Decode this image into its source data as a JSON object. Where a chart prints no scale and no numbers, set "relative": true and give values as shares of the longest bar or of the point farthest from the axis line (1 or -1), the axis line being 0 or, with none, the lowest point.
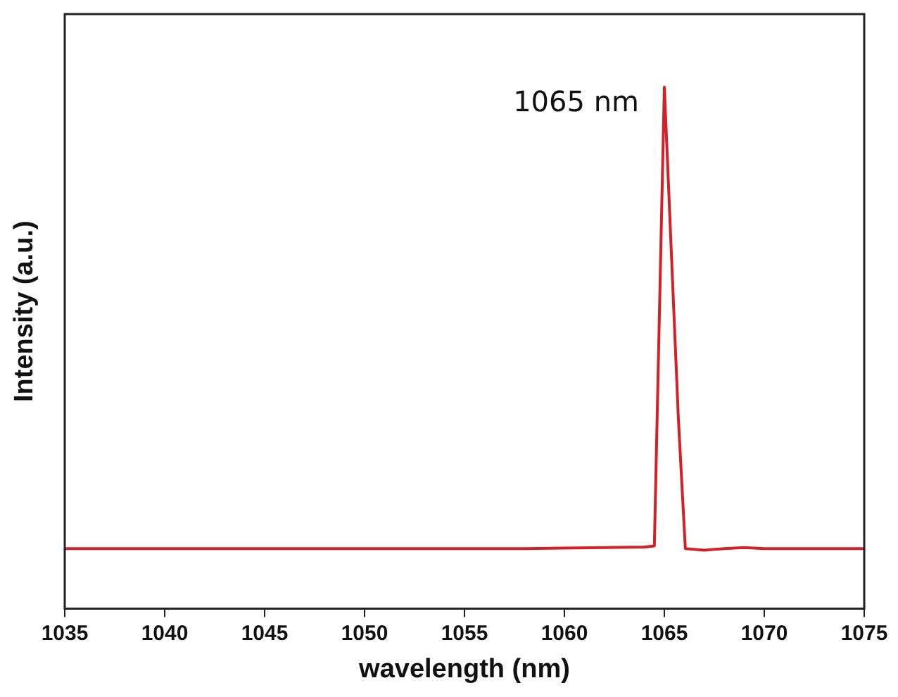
{
  "chart_data": {
    "type": "line",
    "xlabel": "wavelength (nm)",
    "ylabel": "Intensity (a.u.)",
    "relative": true,
    "x": [
      1035,
      1045,
      1055,
      1058,
      1062,
      1064,
      1064.5,
      1065,
      1065.7,
      1066.05,
      1067,
      1068,
      1069,
      1070,
      1075
    ],
    "series": [
      {
        "color": "#d42027",
        "values": [
          0.115,
          0.115,
          0.115,
          0.115,
          0.117,
          0.118,
          0.12,
          1,
          0.366,
          0.115,
          0.112,
          0.115,
          0.117,
          0.115,
          0.115
        ]
      }
    ],
    "xlim": [
      1035,
      1075
    ],
    "xticks": [
      1035,
      1040,
      1045,
      1050,
      1055,
      1060,
      1065,
      1070,
      1075
    ],
    "annotations": [
      {
        "text": "1065 nm",
        "x": 1065,
        "y": 1
      }
    ],
    "grid": false,
    "legend": false,
    "marker": "none",
    "line_style": "solid"
  }
}
